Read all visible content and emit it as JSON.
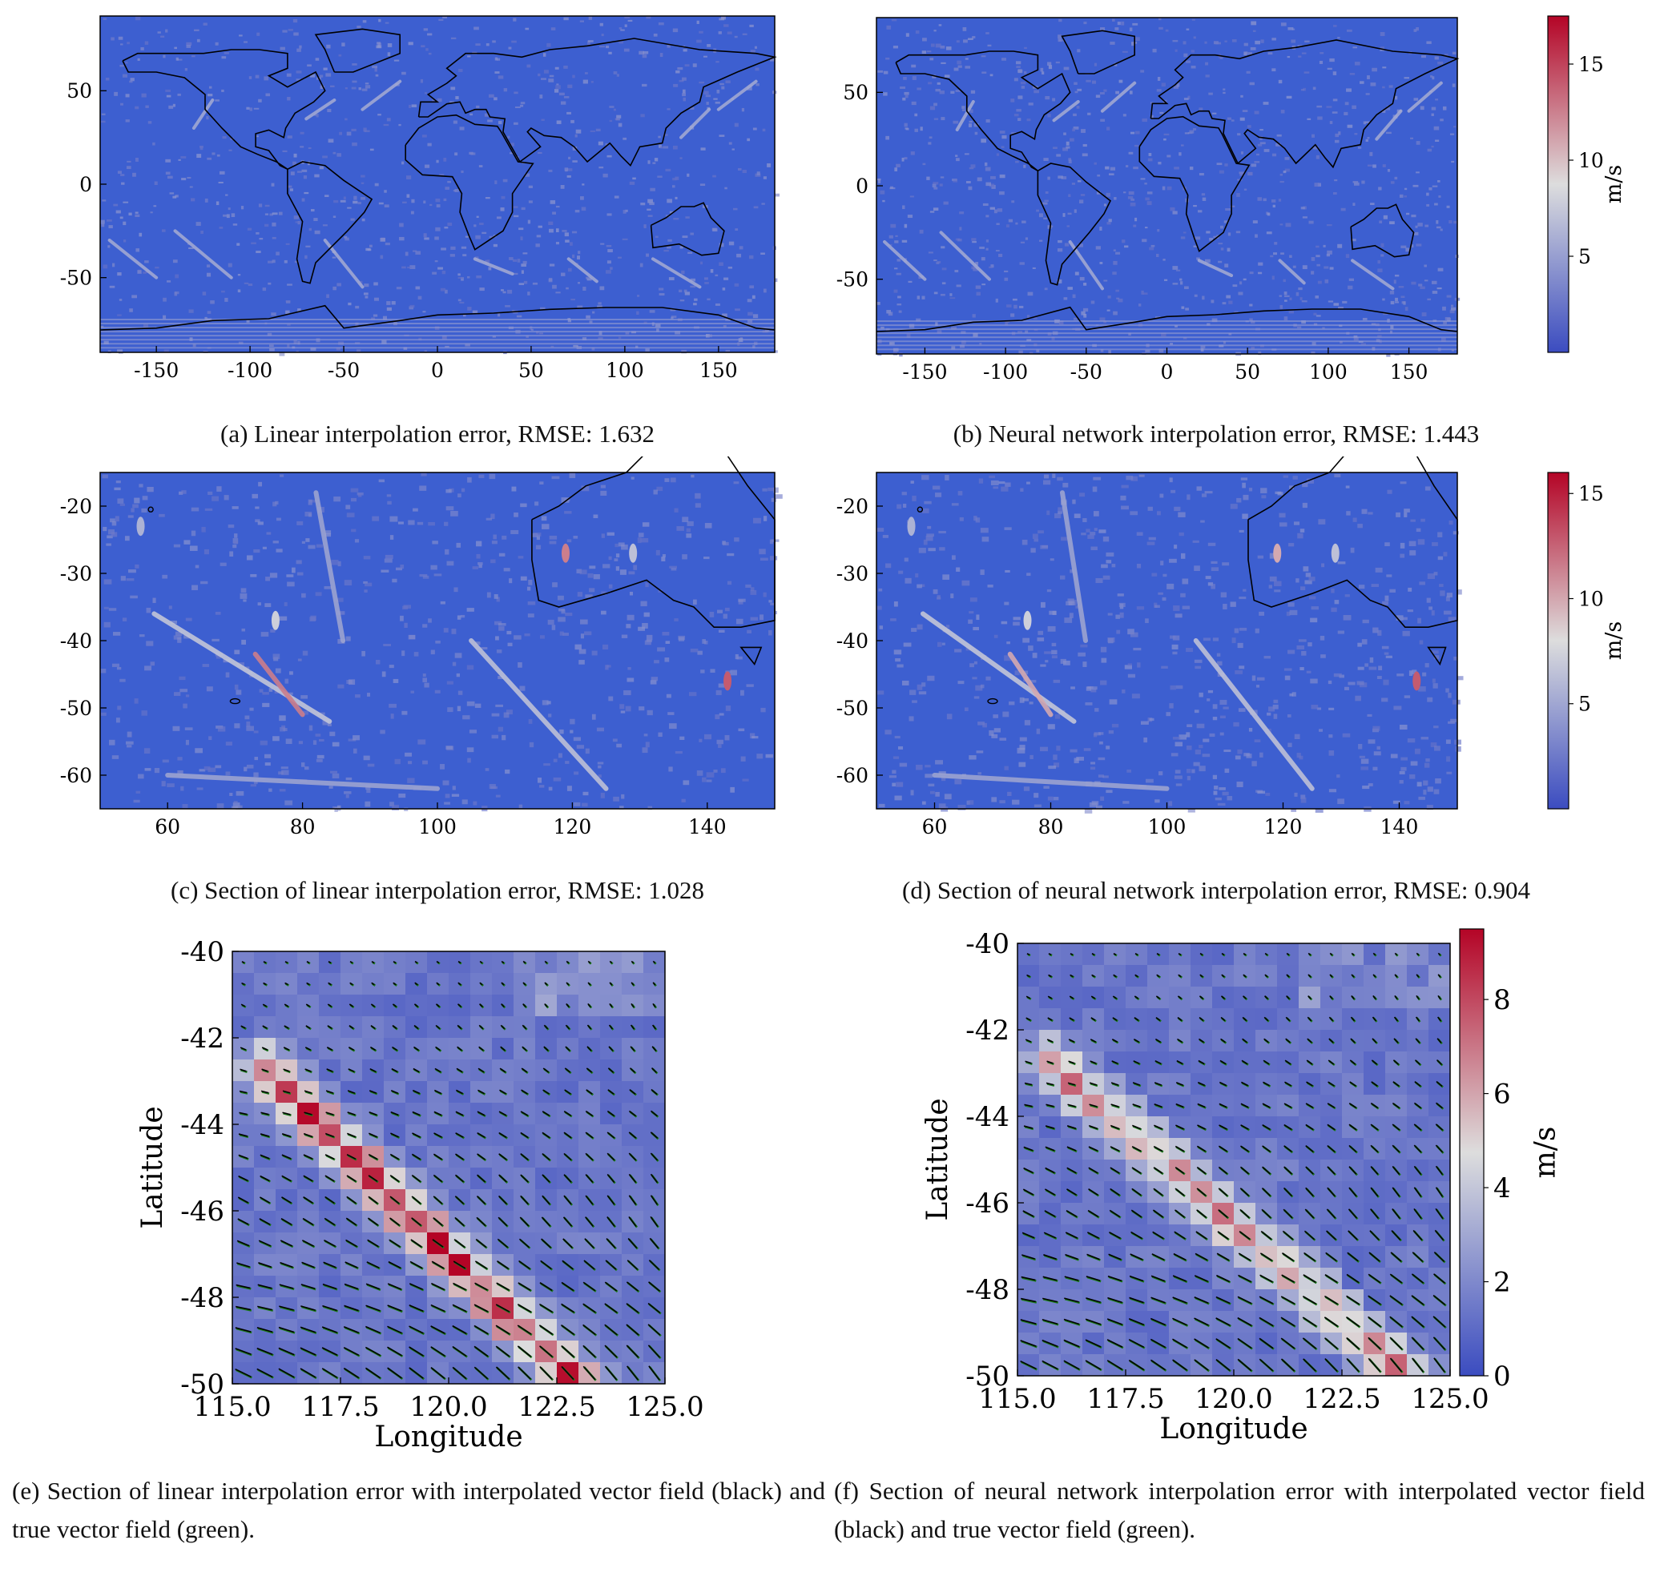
{
  "colormap": {
    "low": "#3b4cc0",
    "mid": "#dddddd",
    "high": "#b40426",
    "field_base": "#3d5fd0",
    "arrow_interp": "#000000",
    "arrow_true": "#1b7a1b"
  },
  "captions": {
    "a": "(a) Linear interpolation error, RMSE: 1.632",
    "b": "(b) Neural network interpolation error, RMSE: 1.443",
    "c": "(c) Section of linear interpolation error, RMSE: 1.028",
    "d": "(d) Section of neural network interpolation error, RMSE: 0.904",
    "e": "(e) Section of linear interpolation error with interpolated vector field (black) and true vector field (green).",
    "f": "(f) Section of neural network interpolation error with interpolated vector field (black) and true vector field (green)."
  },
  "chart_data": [
    {
      "id": "a",
      "type": "heatmap",
      "title": "",
      "xlabel": "",
      "ylabel": "",
      "xlim": [
        -180,
        180
      ],
      "ylim": [
        -90,
        90
      ],
      "xticks": [
        "-150",
        "-100",
        "-50",
        "0",
        "50",
        "100",
        "150"
      ],
      "yticks": [
        "50",
        "0",
        "-50"
      ],
      "colorbar": null
    },
    {
      "id": "b",
      "type": "heatmap",
      "title": "",
      "xlabel": "",
      "ylabel": "",
      "xlim": [
        -180,
        180
      ],
      "ylim": [
        -90,
        90
      ],
      "xticks": [
        "-150",
        "-100",
        "-50",
        "0",
        "50",
        "100",
        "150"
      ],
      "yticks": [
        "50",
        "0",
        "-50"
      ],
      "colorbar": {
        "label": "m/s",
        "range": [
          0,
          17.5
        ],
        "ticks": [
          "15",
          "10",
          "5"
        ]
      }
    },
    {
      "id": "c",
      "type": "heatmap",
      "title": "",
      "xlabel": "",
      "ylabel": "",
      "xlim": [
        50,
        150
      ],
      "ylim": [
        -65,
        -15
      ],
      "xticks": [
        "60",
        "80",
        "100",
        "120",
        "140"
      ],
      "yticks": [
        "-20",
        "-30",
        "-40",
        "-50",
        "-60"
      ],
      "colorbar": null
    },
    {
      "id": "d",
      "type": "heatmap",
      "title": "",
      "xlabel": "",
      "ylabel": "",
      "xlim": [
        50,
        150
      ],
      "ylim": [
        -65,
        -15
      ],
      "xticks": [
        "60",
        "80",
        "100",
        "120",
        "140"
      ],
      "yticks": [
        "-20",
        "-30",
        "-40",
        "-50",
        "-60"
      ],
      "colorbar": {
        "label": "m/s",
        "range": [
          0,
          16
        ],
        "ticks": [
          "15",
          "10",
          "5"
        ]
      }
    },
    {
      "id": "e",
      "type": "heatmap",
      "title": "",
      "xlabel": "Longitude",
      "ylabel": "Latitude",
      "xlim": [
        115,
        125
      ],
      "ylim": [
        -50,
        -40
      ],
      "xticks": [
        "115.0",
        "117.5",
        "120.0",
        "122.5",
        "125.0"
      ],
      "yticks": [
        "-40",
        "-42",
        "-44",
        "-46",
        "-48",
        "-50"
      ],
      "colorbar": null,
      "error_band": {
        "start": [
          115.5,
          -42.5
        ],
        "end": [
          123.0,
          -50.0
        ],
        "peak": 9.0
      }
    },
    {
      "id": "f",
      "type": "heatmap",
      "title": "",
      "xlabel": "Longitude",
      "ylabel": "Latitude",
      "xlim": [
        115,
        125
      ],
      "ylim": [
        -50,
        -40
      ],
      "xticks": [
        "115.0",
        "117.5",
        "120.0",
        "122.5",
        "125.0"
      ],
      "yticks": [
        "-40",
        "-42",
        "-44",
        "-46",
        "-48",
        "-50"
      ],
      "colorbar": {
        "label": "m/s",
        "range": [
          0,
          9.5
        ],
        "ticks": [
          "8",
          "6",
          "4",
          "2",
          "0"
        ]
      },
      "error_band": {
        "start": [
          115.5,
          -42.5
        ],
        "end": [
          124.0,
          -50.0
        ],
        "peak": 6.5
      }
    }
  ]
}
